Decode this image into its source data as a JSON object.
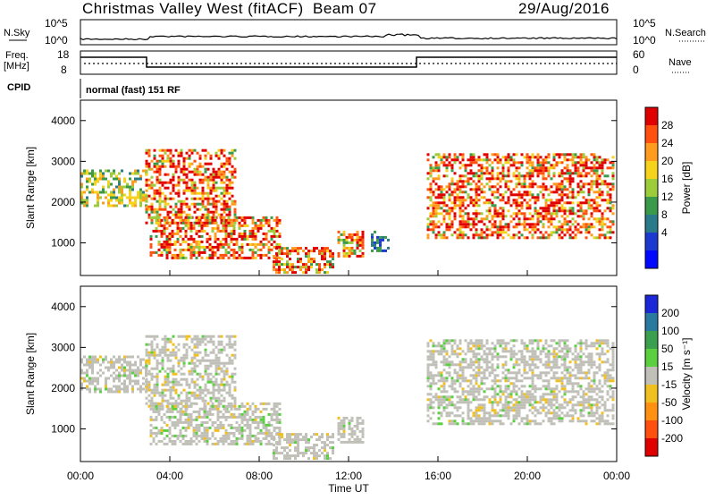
{
  "header": {
    "radar": "Christmas Valley West (fitACF)",
    "beam": "Beam 07",
    "date": "29/Aug/2016"
  },
  "side_labels": {
    "n_sky": "N.Sky",
    "n_search": "N.Search",
    "freq": "Freq.",
    "freq_unit": "[MHz]",
    "nave": "Nave",
    "cpid": "CPID"
  },
  "noise_panel": {
    "left_ticks": [
      "10^5",
      "10^0"
    ],
    "right_ticks": [
      "10^5",
      "10^0"
    ]
  },
  "freq_panel": {
    "left_ticks": [
      "18",
      "8"
    ],
    "right_ticks": [
      "60",
      "0"
    ]
  },
  "cpid_text": "normal (fast) 151 RF",
  "chart_data": [
    {
      "type": "heatmap",
      "name": "power",
      "ylabel": "Slant Range [km]",
      "xlabel": "",
      "yticks": [
        "1000",
        "2000",
        "3000",
        "4000"
      ],
      "ylim": [
        200,
        4500
      ],
      "xlim_hours": [
        0,
        24
      ],
      "colorbar": {
        "label": "Power [dB]",
        "ticks": [
          "28",
          "24",
          "20",
          "16",
          "12",
          "8",
          "4"
        ],
        "colors": [
          "#e00000",
          "#ff5010",
          "#ff9c20",
          "#f5d21c",
          "#9ccc3a",
          "#3a9a4a",
          "#2a7a8a",
          "#1c3ad0",
          "#0008ff"
        ]
      },
      "regions": [
        {
          "t0": 0.0,
          "t1": 2.9,
          "r0": 1900,
          "r1": 2800,
          "level": "mid"
        },
        {
          "t0": 2.9,
          "t1": 6.9,
          "r0": 1500,
          "r1": 3300,
          "level": "high"
        },
        {
          "t0": 3.1,
          "t1": 8.9,
          "r0": 650,
          "r1": 1650,
          "level": "high"
        },
        {
          "t0": 8.6,
          "t1": 11.3,
          "r0": 250,
          "r1": 900,
          "level": "high"
        },
        {
          "t0": 11.5,
          "t1": 12.6,
          "r0": 700,
          "r1": 1300,
          "level": "high"
        },
        {
          "t0": 13.0,
          "t1": 13.8,
          "r0": 800,
          "r1": 1300,
          "level": "low"
        },
        {
          "t0": 15.5,
          "t1": 23.9,
          "r0": 1100,
          "r1": 3200,
          "level": "high"
        }
      ]
    },
    {
      "type": "heatmap",
      "name": "velocity",
      "ylabel": "Slant Range [km]",
      "xlabel": "Time UT",
      "yticks": [
        "1000",
        "2000",
        "3000",
        "4000"
      ],
      "xticks": [
        "00:00",
        "04:00",
        "08:00",
        "12:00",
        "16:00",
        "20:00",
        "00:00"
      ],
      "ylim": [
        200,
        4500
      ],
      "xlim_hours": [
        0,
        24
      ],
      "colorbar": {
        "label": "Velocity [m s⁻¹]",
        "ticks": [
          "200",
          "100",
          "50",
          "15",
          "-15",
          "-50",
          "-100",
          "-200"
        ],
        "colors": [
          "#1c28d8",
          "#2a7aa0",
          "#3aa050",
          "#5ad040",
          "#c0c0b8",
          "#f0c020",
          "#ff9010",
          "#ff5010",
          "#e00000"
        ]
      },
      "regions": [
        {
          "t0": 0.0,
          "t1": 2.9,
          "r0": 1900,
          "r1": 2800,
          "level": "gray"
        },
        {
          "t0": 2.9,
          "t1": 6.9,
          "r0": 1500,
          "r1": 3300,
          "level": "gray"
        },
        {
          "t0": 3.1,
          "t1": 8.9,
          "r0": 650,
          "r1": 1650,
          "level": "gray"
        },
        {
          "t0": 8.6,
          "t1": 11.3,
          "r0": 250,
          "r1": 900,
          "level": "gray"
        },
        {
          "t0": 11.5,
          "t1": 12.6,
          "r0": 700,
          "r1": 1300,
          "level": "gray"
        },
        {
          "t0": 15.5,
          "t1": 23.9,
          "r0": 1100,
          "r1": 3200,
          "level": "gray"
        }
      ]
    }
  ]
}
